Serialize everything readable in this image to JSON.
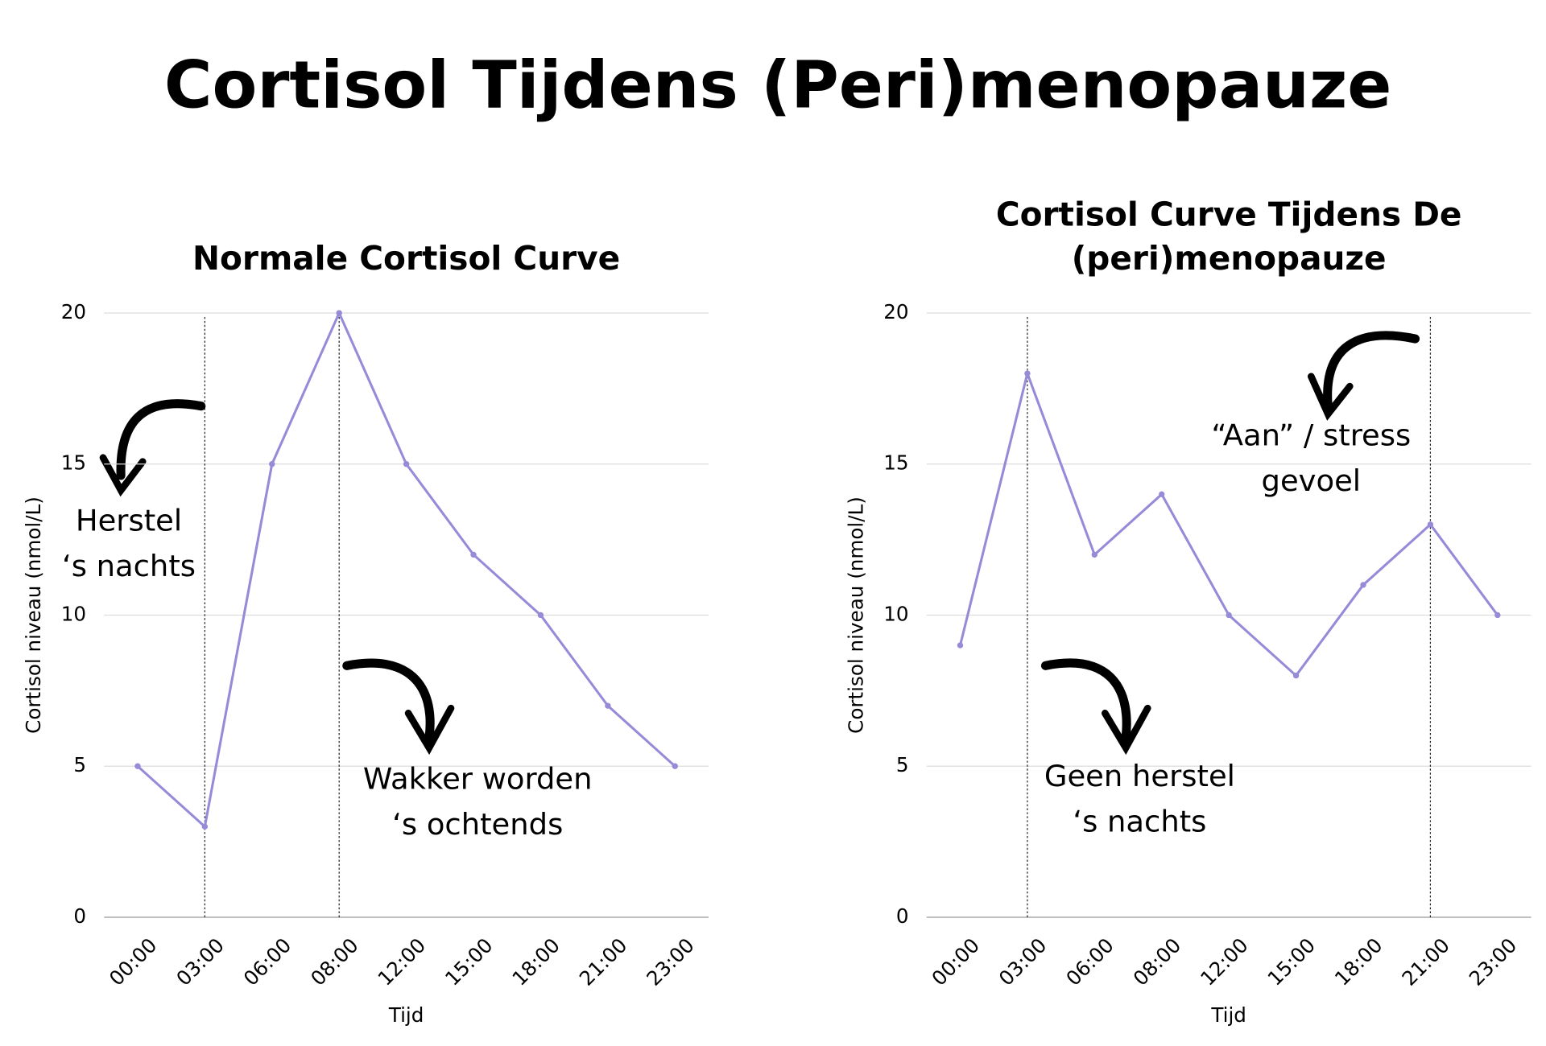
{
  "title": "Cortisol Tijdens (Peri)menopauze",
  "chart_data": [
    {
      "type": "line",
      "title": [
        "Normale Cortisol Curve"
      ],
      "x_label": "Tijd",
      "y_label": "Cortisol niveau (nmol/L)",
      "categories": [
        "00:00",
        "03:00",
        "06:00",
        "08:00",
        "12:00",
        "15:00",
        "18:00",
        "21:00",
        "23:00"
      ],
      "values": [
        5,
        3,
        15,
        20,
        15,
        12,
        10,
        7,
        5
      ],
      "color": "#958bd8",
      "ylim": [
        0,
        20
      ],
      "yticks": [
        0,
        5,
        10,
        15,
        20
      ],
      "grid": true,
      "vlines": [
        "03:00",
        "08:00"
      ],
      "annotations": [
        [
          "Herstel",
          "‘s nachts"
        ],
        [
          "Wakker worden",
          "‘s ochtends"
        ]
      ]
    },
    {
      "type": "line",
      "title": [
        "Cortisol Curve Tijdens De",
        "(peri)menopauze"
      ],
      "x_label": "Tijd",
      "y_label": "Cortisol niveau (nmol/L)",
      "categories": [
        "00:00",
        "03:00",
        "06:00",
        "08:00",
        "12:00",
        "15:00",
        "18:00",
        "21:00",
        "23:00"
      ],
      "values": [
        9,
        18,
        12,
        14,
        10,
        8,
        11,
        13,
        10
      ],
      "color": "#958bd8",
      "ylim": [
        0,
        20
      ],
      "yticks": [
        0,
        5,
        10,
        15,
        20
      ],
      "grid": true,
      "vlines": [
        "03:00",
        "21:00"
      ],
      "annotations": [
        [
          "“Aan” / stress",
          "gevoel"
        ],
        [
          "Geen herstel",
          "‘s nachts"
        ]
      ]
    }
  ]
}
